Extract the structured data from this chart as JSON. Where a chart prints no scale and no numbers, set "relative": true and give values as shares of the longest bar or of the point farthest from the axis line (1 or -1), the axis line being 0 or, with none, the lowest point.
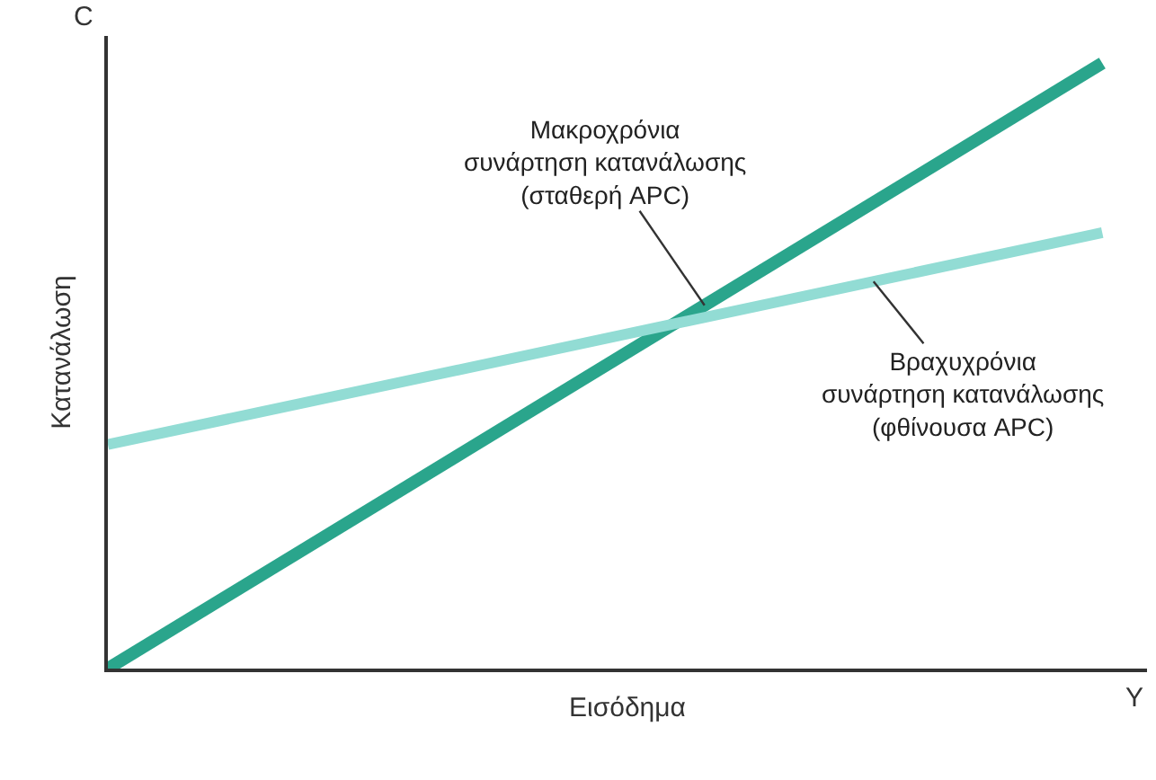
{
  "chart_data": {
    "type": "line",
    "relative": true,
    "categories": [
      null,
      null
    ],
    "xlabel": "Εισόδημα",
    "ylabel": "Κατανάλωση",
    "annotations": [
      "C",
      "Y"
    ],
    "series": [
      {
        "name": "Μακροχρόνια\nσυνάρτηση κατανάλωσης\n(σταθερή APC)",
        "color": "#2aa58c",
        "values": [
          0,
          1
        ]
      },
      {
        "name": "Βραχυχρόνια\nσυνάρτηση κατανάλωσης\n(φθίνουσα APC)",
        "color": "#92dcd4",
        "values": [
          0.37,
          0.72
        ]
      }
    ],
    "legend": false,
    "marker": "none",
    "line_style": "solid"
  }
}
